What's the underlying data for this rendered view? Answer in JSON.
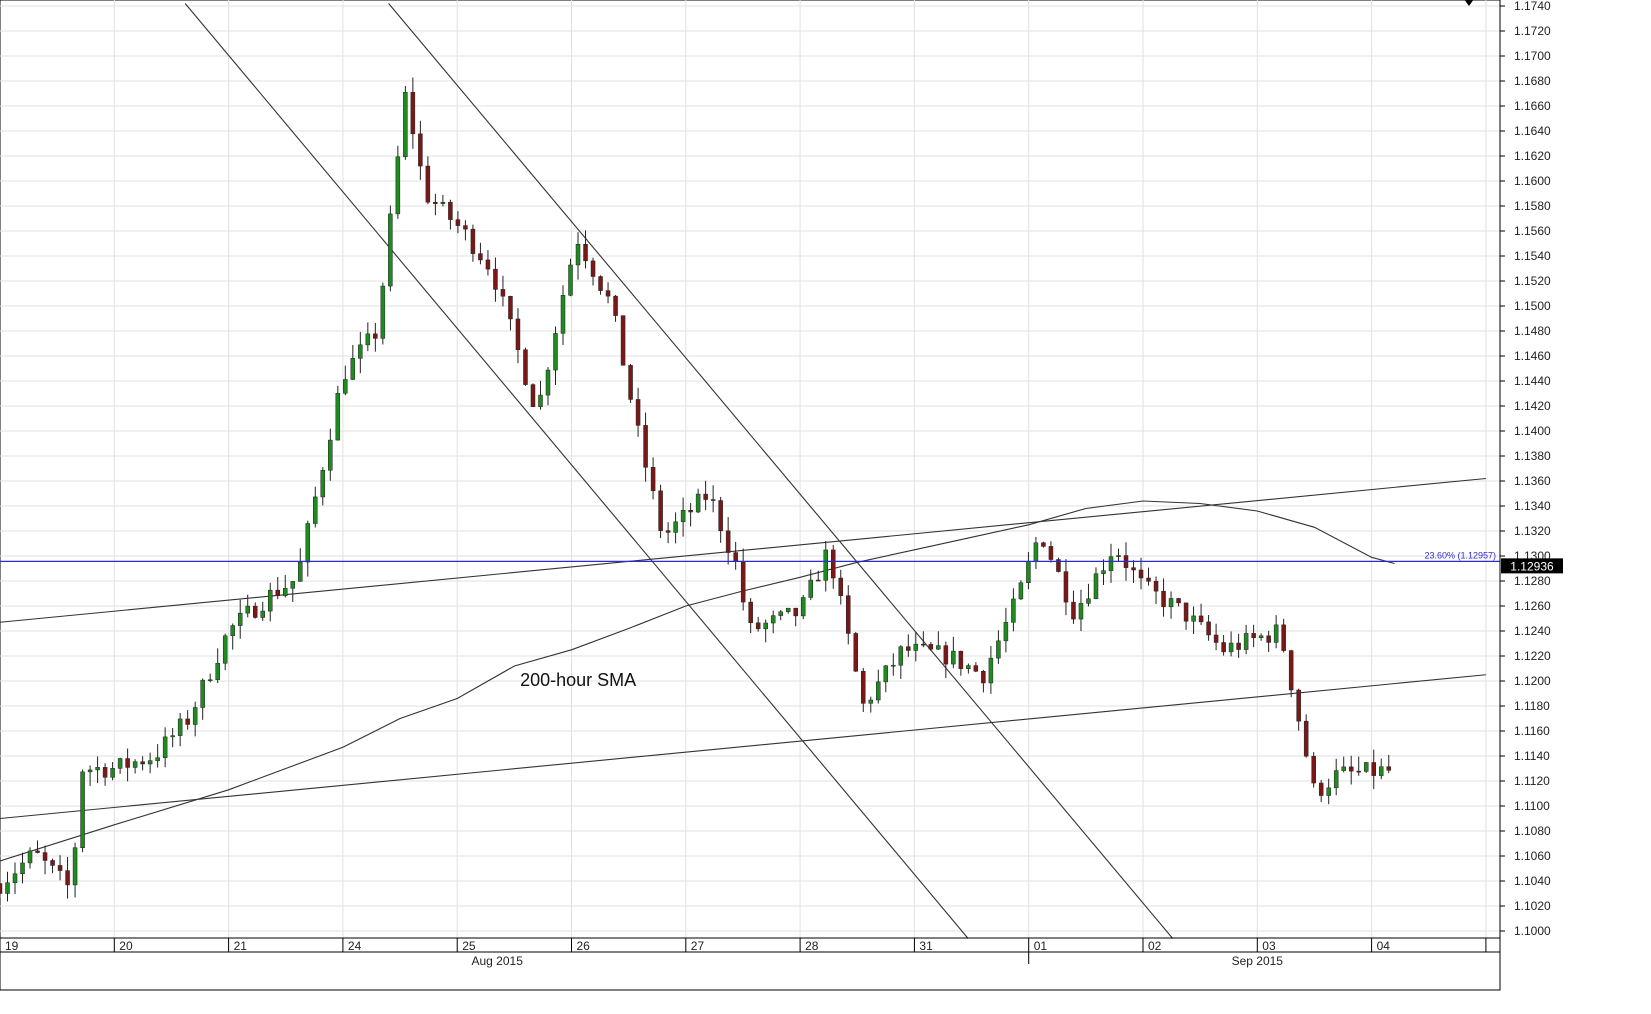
{
  "chart_data": {
    "type": "candlestick",
    "title": "",
    "xlabel": "",
    "ylabel": "",
    "ylim": [
      1.099,
      1.1742
    ],
    "x_day_labels": [
      "19",
      "20",
      "21",
      "24",
      "25",
      "26",
      "27",
      "28",
      "31",
      "01",
      "02",
      "03",
      "04"
    ],
    "x_month_labels": [
      "Aug 2015",
      "Sep 2015"
    ],
    "y_ticks": [
      "1.1000",
      "1.1020",
      "1.1040",
      "1.1060",
      "1.1080",
      "1.1100",
      "1.1120",
      "1.1140",
      "1.1160",
      "1.1180",
      "1.1200",
      "1.1220",
      "1.1240",
      "1.1260",
      "1.1280",
      "1.1300",
      "1.1320",
      "1.1340",
      "1.1360",
      "1.1380",
      "1.1400",
      "1.1420",
      "1.1440",
      "1.1460",
      "1.1480",
      "1.1500",
      "1.1520",
      "1.1540",
      "1.1560",
      "1.1580",
      "1.1600",
      "1.1620",
      "1.1640",
      "1.1660",
      "1.1680",
      "1.1700",
      "1.1720",
      "1.1740"
    ],
    "colors": {
      "bull": "#1f8a1f",
      "bear": "#7a1818",
      "fib_line": "#2b2bd6",
      "price_box": "#000000",
      "trend": "#333333"
    },
    "fib_label": "23.60% (1.12957)",
    "fib_level": 1.12957,
    "last_price_label": "1.12936",
    "annotations": [
      {
        "text": "200-hour SMA",
        "day": 4.55,
        "price": 1.1196
      }
    ],
    "candle_anchors": [
      [
        0.0,
        1.1038
      ],
      [
        0.3,
        1.1062
      ],
      [
        0.62,
        1.1033
      ],
      [
        0.72,
        1.113
      ],
      [
        1.0,
        1.113
      ],
      [
        1.35,
        1.114
      ],
      [
        1.65,
        1.117
      ],
      [
        2.0,
        1.124
      ],
      [
        2.35,
        1.1268
      ],
      [
        2.6,
        1.1282
      ],
      [
        2.78,
        1.1355
      ],
      [
        3.0,
        1.1445
      ],
      [
        3.3,
        1.148
      ],
      [
        3.55,
        1.167
      ],
      [
        3.72,
        1.159
      ],
      [
        4.05,
        1.156
      ],
      [
        4.3,
        1.153
      ],
      [
        4.7,
        1.1415
      ],
      [
        4.95,
        1.152
      ],
      [
        5.05,
        1.1555
      ],
      [
        5.35,
        1.15
      ],
      [
        5.6,
        1.139
      ],
      [
        5.8,
        1.1315
      ],
      [
        6.2,
        1.135
      ],
      [
        6.45,
        1.129
      ],
      [
        6.55,
        1.124
      ],
      [
        7.0,
        1.1255
      ],
      [
        7.25,
        1.1305
      ],
      [
        7.55,
        1.118
      ],
      [
        7.9,
        1.1225
      ],
      [
        8.3,
        1.122
      ],
      [
        8.6,
        1.1205
      ],
      [
        8.9,
        1.1265
      ],
      [
        9.1,
        1.132
      ],
      [
        9.4,
        1.1255
      ],
      [
        9.75,
        1.1308
      ],
      [
        10.0,
        1.1275
      ],
      [
        10.35,
        1.1255
      ],
      [
        10.7,
        1.1225
      ],
      [
        11.2,
        1.124
      ],
      [
        11.5,
        1.111
      ],
      [
        11.7,
        1.1125
      ],
      [
        12.1,
        1.1128
      ]
    ],
    "candle_count": 186,
    "sma_200h": [
      [
        0.0,
        1.1056
      ],
      [
        1.0,
        1.1085
      ],
      [
        2.0,
        1.1113
      ],
      [
        2.5,
        1.113
      ],
      [
        3.0,
        1.1147
      ],
      [
        3.5,
        1.117
      ],
      [
        4.0,
        1.1186
      ],
      [
        4.5,
        1.1212
      ],
      [
        5.0,
        1.1225
      ],
      [
        5.5,
        1.1242
      ],
      [
        6.0,
        1.126
      ],
      [
        6.5,
        1.1272
      ],
      [
        7.0,
        1.1283
      ],
      [
        7.5,
        1.1295
      ],
      [
        8.0,
        1.1305
      ],
      [
        8.5,
        1.1315
      ],
      [
        9.0,
        1.1325
      ],
      [
        9.5,
        1.1338
      ],
      [
        10.0,
        1.1344
      ],
      [
        10.5,
        1.1342
      ],
      [
        11.0,
        1.1336
      ],
      [
        11.5,
        1.1323
      ],
      [
        12.0,
        1.1299
      ],
      [
        12.2,
        1.1294
      ]
    ],
    "trend_lines": [
      {
        "name": "upper-trendline",
        "from": [
          0.0,
          1.1247
        ],
        "to": [
          13.0,
          1.1362
        ]
      },
      {
        "name": "lower-trendline",
        "from": [
          0.0,
          1.109
        ],
        "to": [
          13.0,
          1.1205
        ]
      },
      {
        "name": "channel-lower",
        "from": [
          1.62,
          1.1742
        ],
        "to": [
          8.47,
          1.0994
        ]
      },
      {
        "name": "channel-upper",
        "from": [
          3.4,
          1.1742
        ],
        "to": [
          10.26,
          1.0994
        ]
      }
    ]
  }
}
